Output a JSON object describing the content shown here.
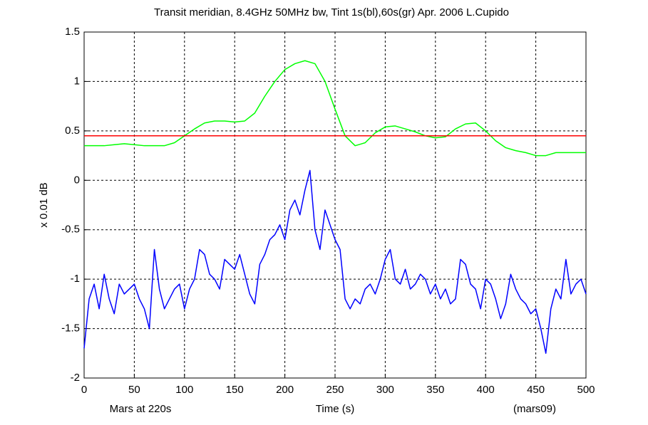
{
  "chart_data": {
    "type": "line",
    "title": "Transit meridian,  8.4GHz 50MHz bw,  Tint 1s(bl),60s(gr)    Apr. 2006    L.Cupido",
    "xlabel": "Time (s)",
    "ylabel": "x 0.01 dB",
    "annotations": [
      "Mars at 220s",
      "(mars09)"
    ],
    "xlim": [
      0,
      500
    ],
    "ylim": [
      -2,
      1.5
    ],
    "xticks": [
      0,
      50,
      100,
      150,
      200,
      250,
      300,
      350,
      400,
      450,
      500
    ],
    "yticks": [
      1.5,
      1,
      0.5,
      0,
      -0.5,
      -1,
      -1.5,
      -2
    ],
    "grid": true,
    "series": [
      {
        "color": "#0000ff",
        "x": [
          0,
          5,
          10,
          15,
          20,
          25,
          30,
          35,
          40,
          45,
          50,
          55,
          60,
          65,
          70,
          75,
          80,
          85,
          90,
          95,
          100,
          105,
          110,
          115,
          120,
          125,
          130,
          135,
          140,
          145,
          150,
          155,
          160,
          165,
          170,
          175,
          180,
          185,
          190,
          195,
          200,
          205,
          210,
          215,
          220,
          225,
          230,
          235,
          240,
          245,
          250,
          255,
          260,
          265,
          270,
          275,
          280,
          285,
          290,
          295,
          300,
          305,
          310,
          315,
          320,
          325,
          330,
          335,
          340,
          345,
          350,
          355,
          360,
          365,
          370,
          375,
          380,
          385,
          390,
          395,
          400,
          405,
          410,
          415,
          420,
          425,
          430,
          435,
          440,
          445,
          450,
          455,
          460,
          465,
          470,
          475,
          480,
          485,
          490,
          495,
          500
        ],
        "values": [
          -1.7,
          -1.2,
          -1.05,
          -1.3,
          -0.95,
          -1.2,
          -1.35,
          -1.05,
          -1.15,
          -1.1,
          -1.05,
          -1.2,
          -1.3,
          -1.5,
          -0.7,
          -1.1,
          -1.3,
          -1.2,
          -1.1,
          -1.05,
          -1.3,
          -1.1,
          -1.0,
          -0.7,
          -0.75,
          -0.95,
          -1.0,
          -1.1,
          -0.8,
          -0.85,
          -0.9,
          -0.75,
          -0.95,
          -1.15,
          -1.25,
          -0.85,
          -0.75,
          -0.6,
          -0.55,
          -0.45,
          -0.6,
          -0.3,
          -0.2,
          -0.35,
          -0.1,
          0.1,
          -0.5,
          -0.7,
          -0.3,
          -0.45,
          -0.6,
          -0.7,
          -1.2,
          -1.3,
          -1.2,
          -1.25,
          -1.1,
          -1.05,
          -1.15,
          -1.0,
          -0.8,
          -0.7,
          -1.0,
          -1.05,
          -0.9,
          -1.1,
          -1.05,
          -0.95,
          -1.0,
          -1.15,
          -1.05,
          -1.2,
          -1.1,
          -1.25,
          -1.2,
          -0.8,
          -0.85,
          -1.05,
          -1.1,
          -1.3,
          -1.0,
          -1.05,
          -1.2,
          -1.4,
          -1.25,
          -0.95,
          -1.1,
          -1.2,
          -1.25,
          -1.35,
          -1.3,
          -1.5,
          -1.75,
          -1.3,
          -1.1,
          -1.2,
          -0.8,
          -1.15,
          -1.05,
          -1.0,
          -1.15
        ]
      },
      {
        "color": "#00ff00",
        "x": [
          0,
          10,
          20,
          30,
          40,
          50,
          60,
          70,
          80,
          90,
          100,
          110,
          120,
          130,
          140,
          150,
          160,
          170,
          180,
          190,
          200,
          210,
          220,
          230,
          240,
          250,
          260,
          270,
          280,
          290,
          300,
          310,
          320,
          330,
          340,
          350,
          360,
          370,
          380,
          390,
          400,
          410,
          420,
          430,
          440,
          450,
          460,
          470,
          480,
          490,
          500
        ],
        "values": [
          0.35,
          0.35,
          0.35,
          0.36,
          0.37,
          0.36,
          0.35,
          0.35,
          0.35,
          0.38,
          0.45,
          0.52,
          0.58,
          0.6,
          0.6,
          0.59,
          0.6,
          0.68,
          0.85,
          1.0,
          1.12,
          1.18,
          1.21,
          1.18,
          1.0,
          0.72,
          0.45,
          0.35,
          0.38,
          0.48,
          0.54,
          0.55,
          0.52,
          0.49,
          0.45,
          0.43,
          0.44,
          0.52,
          0.57,
          0.58,
          0.5,
          0.4,
          0.33,
          0.3,
          0.28,
          0.25,
          0.25,
          0.28,
          0.28,
          0.28,
          0.28
        ]
      },
      {
        "color": "#ff0000",
        "x": [
          0,
          500
        ],
        "values": [
          0.45,
          0.45
        ]
      }
    ]
  }
}
